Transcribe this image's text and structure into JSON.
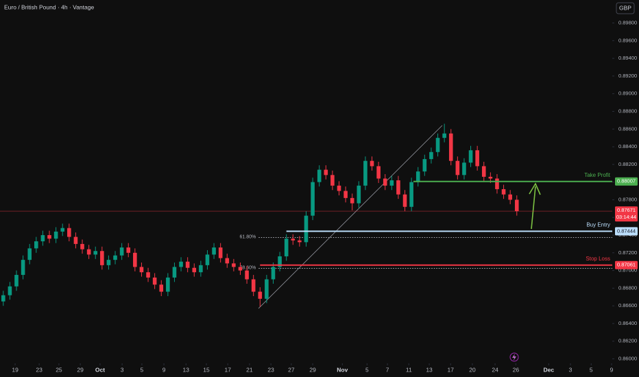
{
  "chart_data": {
    "type": "candlestick",
    "title": "Euro / British Pound · 4h · Vantage",
    "currency_button": "GBP",
    "up_color": "#089981",
    "down_color": "#f23645",
    "x": [
      1,
      3,
      5,
      7,
      9,
      11,
      13,
      15,
      17,
      19,
      21,
      23,
      25,
      27,
      29,
      31,
      33,
      35,
      37,
      39,
      41,
      43,
      45,
      47,
      49,
      51,
      53,
      55,
      57,
      59,
      61,
      63,
      65,
      67,
      69,
      71,
      73,
      75,
      77,
      79,
      81,
      83,
      85,
      87,
      89,
      91,
      93,
      95,
      97,
      99,
      101,
      103,
      105,
      107,
      109,
      111,
      113,
      115,
      117,
      119,
      121,
      123,
      125,
      127,
      129,
      131,
      133,
      135,
      137,
      139,
      141,
      143,
      145,
      147,
      149,
      151,
      153,
      155,
      157
    ],
    "open": [
      0.8665,
      0.8672,
      0.8682,
      0.8695,
      0.8712,
      0.8725,
      0.8733,
      0.874,
      0.8736,
      0.8744,
      0.8748,
      0.8738,
      0.873,
      0.8724,
      0.8718,
      0.8722,
      0.8706,
      0.8712,
      0.8717,
      0.8726,
      0.872,
      0.8704,
      0.8698,
      0.8692,
      0.8684,
      0.8676,
      0.8692,
      0.8704,
      0.871,
      0.8703,
      0.8698,
      0.8706,
      0.8718,
      0.8726,
      0.8714,
      0.8708,
      0.8704,
      0.87,
      0.869,
      0.8676,
      0.8668,
      0.869,
      0.8704,
      0.8716,
      0.8736,
      0.8734,
      0.8732,
      0.8762,
      0.88,
      0.8814,
      0.8808,
      0.8796,
      0.879,
      0.8782,
      0.8776,
      0.8796,
      0.8824,
      0.8818,
      0.8804,
      0.8796,
      0.8802,
      0.8786,
      0.8772,
      0.88,
      0.8812,
      0.8826,
      0.8834,
      0.885,
      0.8855,
      0.8824,
      0.8808,
      0.8822,
      0.8836,
      0.8818,
      0.8806,
      0.8804,
      0.8792,
      0.8786,
      0.878
    ],
    "high": [
      0.8677,
      0.8687,
      0.87,
      0.8717,
      0.873,
      0.8738,
      0.8745,
      0.8745,
      0.8749,
      0.8753,
      0.8753,
      0.8743,
      0.8735,
      0.8729,
      0.8727,
      0.8727,
      0.8717,
      0.8722,
      0.8731,
      0.8731,
      0.8725,
      0.8709,
      0.8703,
      0.8697,
      0.8689,
      0.8697,
      0.8709,
      0.8715,
      0.8715,
      0.8708,
      0.8711,
      0.8723,
      0.8731,
      0.8731,
      0.8719,
      0.8713,
      0.8709,
      0.8705,
      0.8695,
      0.8681,
      0.8695,
      0.8709,
      0.8721,
      0.8741,
      0.8741,
      0.8739,
      0.8767,
      0.8805,
      0.8819,
      0.8819,
      0.8813,
      0.8801,
      0.8795,
      0.8787,
      0.8801,
      0.8829,
      0.8829,
      0.8823,
      0.8809,
      0.8807,
      0.8807,
      0.8791,
      0.8805,
      0.8817,
      0.8831,
      0.8839,
      0.8855,
      0.8866,
      0.886,
      0.8829,
      0.8827,
      0.8841,
      0.8841,
      0.8823,
      0.8811,
      0.8809,
      0.8797,
      0.8791,
      0.8785
    ],
    "low": [
      0.866,
      0.8667,
      0.8677,
      0.869,
      0.8707,
      0.872,
      0.8728,
      0.8731,
      0.8731,
      0.8739,
      0.8733,
      0.8725,
      0.8719,
      0.8713,
      0.8713,
      0.8701,
      0.8701,
      0.8707,
      0.8712,
      0.8715,
      0.8699,
      0.8693,
      0.8687,
      0.8679,
      0.8671,
      0.8671,
      0.8687,
      0.8699,
      0.8698,
      0.8693,
      0.8693,
      0.8701,
      0.8713,
      0.8709,
      0.8703,
      0.8699,
      0.8695,
      0.8685,
      0.8671,
      0.8659,
      0.8663,
      0.8685,
      0.8699,
      0.8711,
      0.8729,
      0.8727,
      0.8727,
      0.8757,
      0.8795,
      0.8803,
      0.8791,
      0.8785,
      0.8777,
      0.8768,
      0.8771,
      0.8791,
      0.8813,
      0.8799,
      0.8791,
      0.8791,
      0.8781,
      0.8767,
      0.8767,
      0.8795,
      0.8807,
      0.8821,
      0.8829,
      0.8845,
      0.8819,
      0.8803,
      0.8803,
      0.8817,
      0.8813,
      0.8801,
      0.8799,
      0.8787,
      0.8781,
      0.8775,
      0.8762
    ],
    "close": [
      0.8672,
      0.8682,
      0.8695,
      0.8712,
      0.8725,
      0.8733,
      0.874,
      0.8736,
      0.8744,
      0.8748,
      0.8738,
      0.873,
      0.8724,
      0.8718,
      0.8722,
      0.8706,
      0.8712,
      0.8717,
      0.8726,
      0.872,
      0.8704,
      0.8698,
      0.8692,
      0.8684,
      0.8676,
      0.8692,
      0.8704,
      0.871,
      0.8703,
      0.8698,
      0.8706,
      0.8718,
      0.8726,
      0.8714,
      0.8708,
      0.8704,
      0.87,
      0.869,
      0.8676,
      0.8668,
      0.869,
      0.8704,
      0.8716,
      0.8736,
      0.8734,
      0.8732,
      0.8762,
      0.88,
      0.8814,
      0.8808,
      0.8796,
      0.879,
      0.8782,
      0.8776,
      0.8796,
      0.8824,
      0.8818,
      0.8804,
      0.8796,
      0.8802,
      0.8786,
      0.8772,
      0.88,
      0.8812,
      0.8826,
      0.8834,
      0.885,
      0.8855,
      0.8824,
      0.8808,
      0.8822,
      0.8836,
      0.8818,
      0.8806,
      0.8804,
      0.8792,
      0.8786,
      0.878,
      0.87671
    ],
    "countdown": "03:14:44",
    "xlim": [
      0,
      186
    ],
    "ylim": [
      0.8595,
      0.9006
    ],
    "xticks": [
      {
        "value": 4.6,
        "label": "19"
      },
      {
        "value": 11.9,
        "label": "23"
      },
      {
        "value": 17.9,
        "label": "25"
      },
      {
        "value": 24.4,
        "label": "29"
      },
      {
        "value": 30.4,
        "label": "Oct"
      },
      {
        "value": 37.1,
        "label": "3"
      },
      {
        "value": 43.1,
        "label": "5"
      },
      {
        "value": 49.8,
        "label": "9"
      },
      {
        "value": 56.5,
        "label": "13"
      },
      {
        "value": 62.7,
        "label": "15"
      },
      {
        "value": 69.2,
        "label": "17"
      },
      {
        "value": 75.8,
        "label": "21"
      },
      {
        "value": 82.3,
        "label": "23"
      },
      {
        "value": 88.5,
        "label": "27"
      },
      {
        "value": 95,
        "label": "29"
      },
      {
        "value": 104,
        "label": "Nov"
      },
      {
        "value": 111.5,
        "label": "5"
      },
      {
        "value": 117.7,
        "label": "7"
      },
      {
        "value": 124.2,
        "label": "11"
      },
      {
        "value": 130.4,
        "label": "13"
      },
      {
        "value": 136.9,
        "label": "17"
      },
      {
        "value": 143.5,
        "label": "20"
      },
      {
        "value": 150.4,
        "label": "24"
      },
      {
        "value": 156.7,
        "label": "26"
      },
      {
        "value": 166.7,
        "label": "Dec"
      },
      {
        "value": 173.3,
        "label": "3"
      },
      {
        "value": 179.6,
        "label": "5"
      },
      {
        "value": 185.8,
        "label": "9"
      }
    ],
    "yticks": [
      {
        "value": 0.86,
        "label": "0.86000"
      },
      {
        "value": 0.862,
        "label": "0.86200"
      },
      {
        "value": 0.864,
        "label": "0.86400"
      },
      {
        "value": 0.866,
        "label": "0.86600"
      },
      {
        "value": 0.868,
        "label": "0.86800"
      },
      {
        "value": 0.87,
        "label": "0.87000"
      },
      {
        "value": 0.872,
        "label": "0.87200"
      },
      {
        "value": 0.874,
        "label": "0.87400"
      },
      {
        "value": 0.876,
        "label": "0.87600"
      },
      {
        "value": 0.878,
        "label": "0.87800"
      },
      {
        "value": 0.88,
        "label": "0.88000"
      },
      {
        "value": 0.882,
        "label": "0.88200"
      },
      {
        "value": 0.884,
        "label": "0.88400"
      },
      {
        "value": 0.886,
        "label": "0.88600"
      },
      {
        "value": 0.888,
        "label": "0.88800"
      },
      {
        "value": 0.89,
        "label": "0.89000"
      },
      {
        "value": 0.892,
        "label": "0.89200"
      },
      {
        "value": 0.894,
        "label": "0.89400"
      },
      {
        "value": 0.896,
        "label": "0.89600"
      },
      {
        "value": 0.898,
        "label": "0.89800"
      }
    ],
    "levels": [
      {
        "label": "Take Profit",
        "value": 0.88007,
        "color": "#4caf50",
        "x_start": 125.6
      },
      {
        "label": "Buy Entry",
        "value": 0.87444,
        "color": "#bbdefb",
        "x_start": 87
      },
      {
        "label": "Stop Loss",
        "value": 0.87061,
        "color": "#f23645",
        "x_start": 79
      }
    ],
    "fib_levels": [
      {
        "label": "61.80%",
        "value": 0.87373
      },
      {
        "label": "78.60%",
        "value": 0.87024
      }
    ],
    "grid": false
  }
}
